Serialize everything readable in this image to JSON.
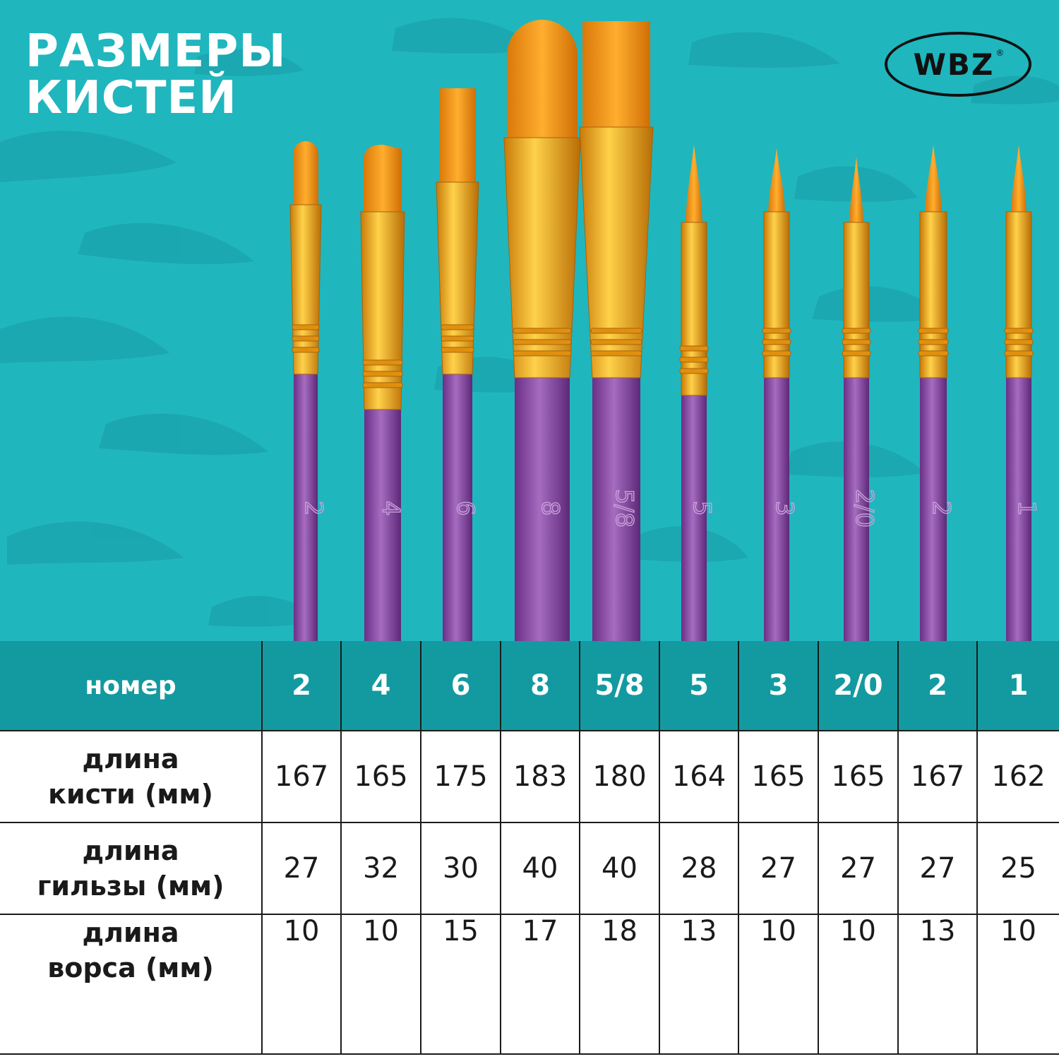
{
  "title": {
    "line1": "РАЗМЕРЫ",
    "line2": "КИСТЕЙ"
  },
  "brand": {
    "logo_text": "WBZ",
    "registered_mark": "®"
  },
  "colors": {
    "background": "#20b6be",
    "header_row": "#139aa0",
    "handle": "#8e4fa6",
    "ferrule": "#f3a51c",
    "bristles": "#f2930c"
  },
  "brushes": [
    {
      "shape": "oval",
      "handle_number": "2"
    },
    {
      "shape": "angled",
      "handle_number": "4"
    },
    {
      "shape": "flat",
      "handle_number": "6"
    },
    {
      "shape": "filbert",
      "handle_number": "8"
    },
    {
      "shape": "flat",
      "handle_number": "5/8"
    },
    {
      "shape": "round",
      "handle_number": "5"
    },
    {
      "shape": "round",
      "handle_number": "3"
    },
    {
      "shape": "round",
      "handle_number": "2/0"
    },
    {
      "shape": "round",
      "handle_number": "2"
    },
    {
      "shape": "round",
      "handle_number": "1"
    }
  ],
  "table": {
    "header": {
      "label": "номер",
      "values": [
        "2",
        "4",
        "6",
        "8",
        "5/8",
        "5",
        "3",
        "2/0",
        "2",
        "1"
      ]
    },
    "rows": [
      {
        "label_line1": "длина",
        "label_line2": "кисти (мм)",
        "values": [
          "167",
          "165",
          "175",
          "183",
          "180",
          "164",
          "165",
          "165",
          "167",
          "162"
        ]
      },
      {
        "label_line1": "длина",
        "label_line2": "гильзы (мм)",
        "values": [
          "27",
          "32",
          "30",
          "40",
          "40",
          "28",
          "27",
          "27",
          "27",
          "25"
        ]
      },
      {
        "label_line1": "длина",
        "label_line2": "ворса (мм)",
        "values": [
          "10",
          "10",
          "15",
          "17",
          "18",
          "13",
          "10",
          "10",
          "13",
          "10"
        ]
      }
    ]
  }
}
